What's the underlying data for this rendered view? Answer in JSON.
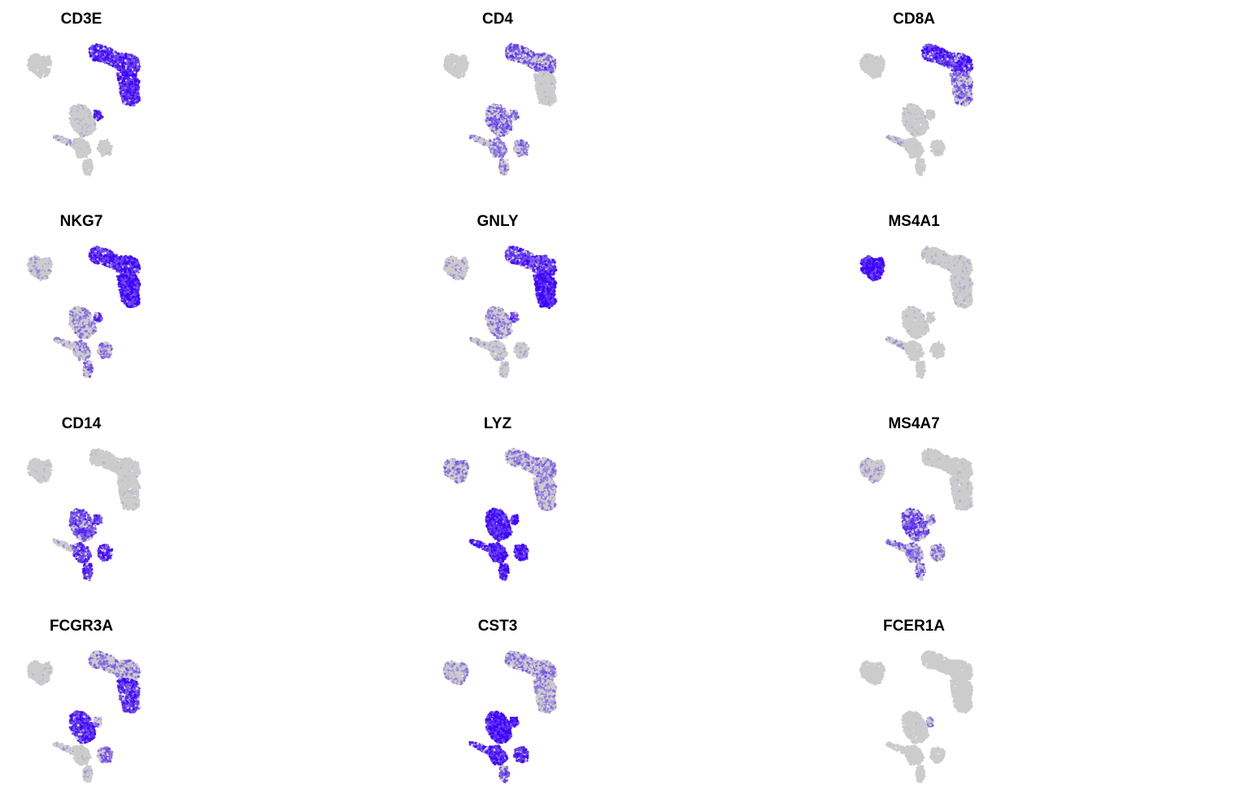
{
  "colors": {
    "low": "#cccccc",
    "high": "#3c00ff"
  },
  "chart_data": {
    "type": "scatter",
    "description_axes": "none",
    "layout": {
      "rows": 4,
      "columns": 3
    },
    "grid": false,
    "legend": "none",
    "panels": [
      {
        "title": "CD3E",
        "expression": {
          "B": 0.03,
          "T_top": 0.9,
          "T_bottom": 0.95,
          "mono_main": 0.15,
          "mono_side": 0.9,
          "strip": 0.3,
          "lower": 0.05,
          "lower_right": 0.05,
          "tail": 0.05
        }
      },
      {
        "title": "CD4",
        "expression": {
          "B": 0.05,
          "T_top": 0.65,
          "T_bottom": 0.1,
          "mono_main": 0.6,
          "mono_side": 0.6,
          "strip": 0.4,
          "lower": 0.5,
          "lower_right": 0.55,
          "tail": 0.5
        }
      },
      {
        "title": "CD8A",
        "expression": {
          "B": 0.05,
          "T_top": 0.9,
          "T_bottom": 0.6,
          "mono_main": 0.1,
          "mono_side": 0.1,
          "strip": 0.3,
          "lower": 0.05,
          "lower_right": 0.05,
          "tail": 0.05
        }
      },
      {
        "title": "NKG7",
        "expression": {
          "B": 0.3,
          "T_top": 0.9,
          "T_bottom": 1.0,
          "mono_main": 0.45,
          "mono_side": 0.8,
          "strip": 0.4,
          "lower": 0.45,
          "lower_right": 0.5,
          "tail": 0.6
        }
      },
      {
        "title": "GNLY",
        "expression": {
          "B": 0.3,
          "T_top": 0.85,
          "T_bottom": 1.0,
          "mono_main": 0.45,
          "mono_side": 0.8,
          "strip": 0.3,
          "lower": 0.25,
          "lower_right": 0.2,
          "tail": 0.2
        }
      },
      {
        "title": "MS4A1",
        "expression": {
          "B": 1.0,
          "T_top": 0.15,
          "T_bottom": 0.15,
          "mono_main": 0.1,
          "mono_side": 0.1,
          "strip": 0.3,
          "lower": 0.05,
          "lower_right": 0.05,
          "tail": 0.05
        }
      },
      {
        "title": "CD14",
        "expression": {
          "B": 0.1,
          "T_top": 0.1,
          "T_bottom": 0.1,
          "mono_main": 0.75,
          "mono_side": 0.8,
          "strip": 0.3,
          "lower": 0.85,
          "lower_right": 0.9,
          "tail": 0.9
        }
      },
      {
        "title": "LYZ",
        "expression": {
          "B": 0.5,
          "T_top": 0.5,
          "T_bottom": 0.45,
          "mono_main": 1.0,
          "mono_side": 1.0,
          "strip": 0.95,
          "lower": 1.0,
          "lower_right": 1.0,
          "tail": 1.0
        }
      },
      {
        "title": "MS4A7",
        "expression": {
          "B": 0.3,
          "T_top": 0.1,
          "T_bottom": 0.1,
          "mono_main": 0.7,
          "mono_side": 0.6,
          "strip": 0.6,
          "lower": 0.6,
          "lower_right": 0.5,
          "tail": 0.6
        }
      },
      {
        "title": "FCGR3A",
        "expression": {
          "B": 0.1,
          "T_top": 0.5,
          "T_bottom": 0.85,
          "mono_main": 0.9,
          "mono_side": 0.5,
          "strip": 0.3,
          "lower": 0.1,
          "lower_right": 0.6,
          "tail": 0.3
        }
      },
      {
        "title": "CST3",
        "expression": {
          "B": 0.4,
          "T_top": 0.5,
          "T_bottom": 0.4,
          "mono_main": 1.0,
          "mono_side": 1.0,
          "strip": 0.9,
          "lower": 0.95,
          "lower_right": 0.9,
          "tail": 0.7
        }
      },
      {
        "title": "FCER1A",
        "expression": {
          "B": 0.0,
          "T_top": 0.0,
          "T_bottom": 0.0,
          "mono_main": 0.05,
          "mono_side": 0.5,
          "strip": 0.05,
          "lower": 0.0,
          "lower_right": 0.0,
          "tail": 0.0
        }
      }
    ]
  }
}
